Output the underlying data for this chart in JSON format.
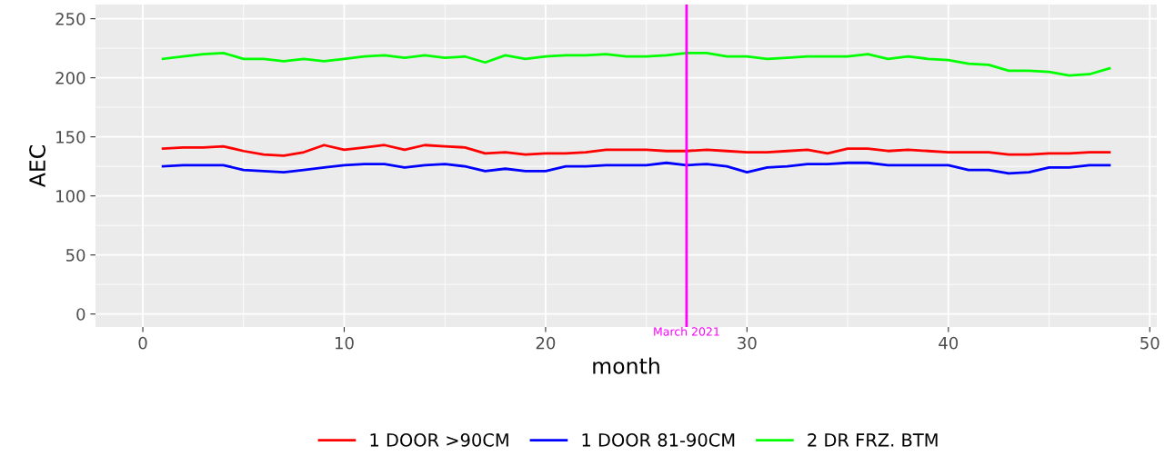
{
  "chart_data": {
    "type": "line",
    "xlabel": "month",
    "ylabel": "AEC",
    "x": [
      1,
      2,
      3,
      4,
      5,
      6,
      7,
      8,
      9,
      10,
      11,
      12,
      13,
      14,
      15,
      16,
      17,
      18,
      19,
      20,
      21,
      22,
      23,
      24,
      25,
      26,
      27,
      28,
      29,
      30,
      31,
      32,
      33,
      34,
      35,
      36,
      37,
      38,
      39,
      40,
      41,
      42,
      43,
      44,
      45,
      46,
      47,
      48
    ],
    "series": [
      {
        "name": "1 DOOR >90CM",
        "color": "#ff0000",
        "values": [
          140,
          141,
          141,
          142,
          138,
          135,
          134,
          137,
          143,
          139,
          141,
          143,
          139,
          143,
          142,
          141,
          136,
          137,
          135,
          136,
          136,
          137,
          139,
          139,
          139,
          138,
          138,
          139,
          138,
          137,
          137,
          138,
          139,
          136,
          140,
          140,
          138,
          139,
          138,
          137,
          137,
          137,
          135,
          135,
          136,
          136,
          137,
          137
        ]
      },
      {
        "name": "1 DOOR 81-90CM",
        "color": "#0000ff",
        "values": [
          125,
          126,
          126,
          126,
          122,
          121,
          120,
          122,
          124,
          126,
          127,
          127,
          124,
          126,
          127,
          125,
          121,
          123,
          121,
          121,
          125,
          125,
          126,
          126,
          126,
          128,
          126,
          127,
          125,
          120,
          124,
          125,
          127,
          127,
          128,
          128,
          126,
          126,
          126,
          126,
          122,
          122,
          119,
          120,
          124,
          124,
          126,
          126
        ]
      },
      {
        "name": "2 DR FRZ. BTM",
        "color": "#00ff00",
        "values": [
          216,
          218,
          220,
          221,
          216,
          216,
          214,
          216,
          214,
          216,
          218,
          219,
          217,
          219,
          217,
          218,
          213,
          219,
          216,
          218,
          219,
          219,
          220,
          218,
          218,
          219,
          221,
          221,
          218,
          218,
          216,
          217,
          218,
          218,
          218,
          220,
          216,
          218,
          216,
          215,
          212,
          211,
          206,
          206,
          205,
          202,
          203,
          208
        ]
      }
    ],
    "xlim": [
      -2.35,
      50.35
    ],
    "xticks": [
      0,
      10,
      20,
      30,
      40,
      50
    ],
    "ylim": [
      -11,
      262
    ],
    "yticks": [
      0,
      50,
      100,
      150,
      200,
      250
    ],
    "ref_lines": [
      {
        "axis": "x",
        "value": 27,
        "label": "March 2021",
        "color": "#ff00ff"
      }
    ],
    "grid": true,
    "legend": "bottom",
    "line_style": "solid",
    "marker": "none"
  }
}
